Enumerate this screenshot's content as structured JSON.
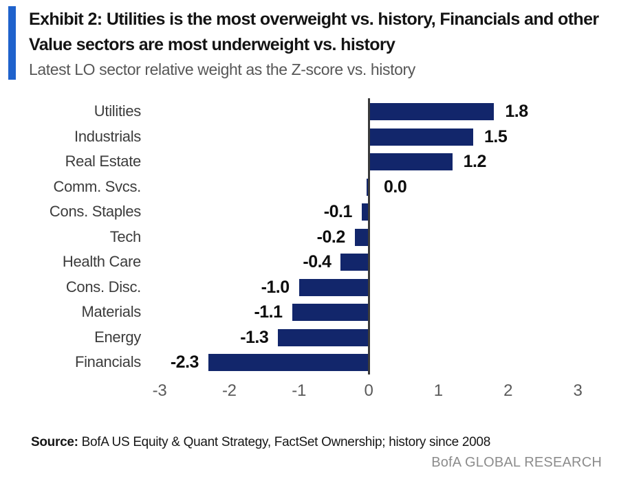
{
  "header": {
    "exhibit_title": "Exhibit 2: Utilities is the most overweight vs. history, Financials and other Value sectors are most underweight vs. history",
    "subtitle": "Latest LO sector relative weight as the Z-score vs. history"
  },
  "chart_data": {
    "type": "bar",
    "orientation": "horizontal",
    "title": "Latest LO sector relative weight as the Z-score vs. history",
    "categories": [
      "Utilities",
      "Industrials",
      "Real Estate",
      "Comm. Svcs.",
      "Cons. Staples",
      "Tech",
      "Health Care",
      "Cons. Disc.",
      "Materials",
      "Energy",
      "Financials"
    ],
    "values": [
      1.8,
      1.5,
      1.2,
      0.0,
      -0.1,
      -0.2,
      -0.4,
      -1.0,
      -1.1,
      -1.3,
      -2.3
    ],
    "value_labels": [
      "1.8",
      "1.5",
      "1.2",
      "0.0",
      "-0.1",
      "-0.2",
      "-0.4",
      "-1.0",
      "-1.1",
      "-1.3",
      "-2.3"
    ],
    "x_ticks": [
      "-3",
      "-2",
      "-1",
      "0",
      "1",
      "2",
      "3"
    ],
    "xlim": [
      -3,
      3
    ],
    "xlabel": "",
    "ylabel": "",
    "grid": false,
    "legend": false,
    "bar_color": "#12266b"
  },
  "footer": {
    "source_label": "Source:",
    "source_text": " BofA US Equity & Quant Strategy, FactSet Ownership; history since 2008",
    "brand": "BofA GLOBAL RESEARCH"
  },
  "colors": {
    "accent_bar": "#1f62cc",
    "bar": "#12266b",
    "axis": "#3a3a3a",
    "title_text": "#141414",
    "subtitle_text": "#575757",
    "tick_text": "#5a5a5a",
    "brand_text": "#8c8c8c"
  }
}
